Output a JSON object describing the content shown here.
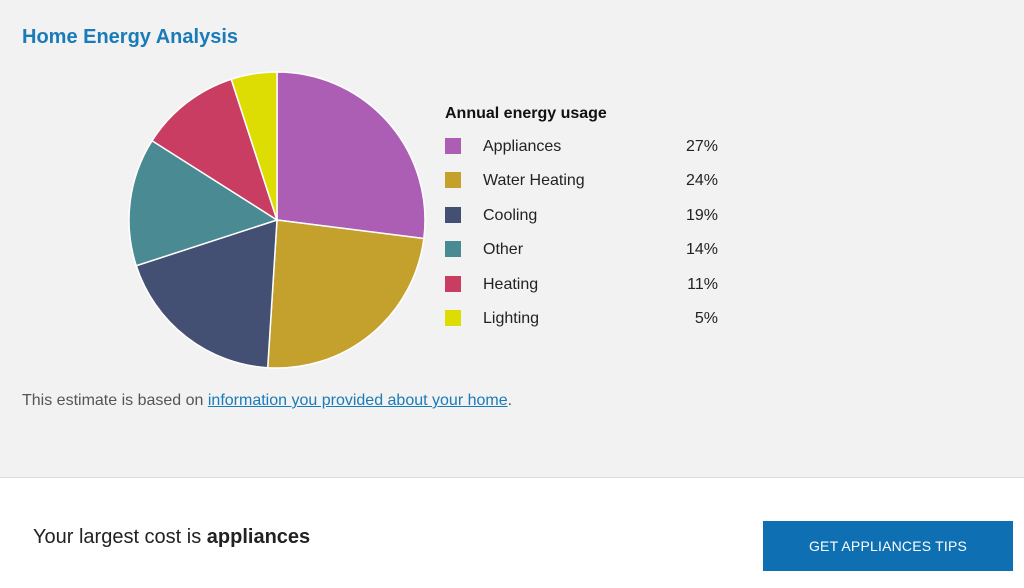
{
  "header": {
    "title": "Home Energy Analysis"
  },
  "legend": {
    "title": "Annual energy usage"
  },
  "chart_data": {
    "type": "pie",
    "title": "",
    "legend_title": "Annual energy usage",
    "legend_position": "right",
    "slices": [
      {
        "label": "Appliances",
        "value": 27,
        "display": "27%",
        "color": "#ab5eb4"
      },
      {
        "label": "Water Heating",
        "value": 24,
        "display": "24%",
        "color": "#c4a02d"
      },
      {
        "label": "Cooling",
        "value": 19,
        "display": "19%",
        "color": "#434f73"
      },
      {
        "label": "Other",
        "value": 14,
        "display": "14%",
        "color": "#4a8a93"
      },
      {
        "label": "Heating",
        "value": 11,
        "display": "11%",
        "color": "#c93d62"
      },
      {
        "label": "Lighting",
        "value": 5,
        "display": "5%",
        "color": "#dddd04"
      }
    ]
  },
  "note": {
    "prefix": "This estimate is based on ",
    "link_text": "information you provided about your home",
    "suffix": "."
  },
  "summary": {
    "prefix": "Your largest cost is ",
    "highlight": "appliances"
  },
  "cta": {
    "label": "GET APPLIANCES TIPS"
  },
  "colors": {
    "accent": "#1a7bb9",
    "button": "#0e70b2",
    "panel_background": "#f2f2f2"
  }
}
